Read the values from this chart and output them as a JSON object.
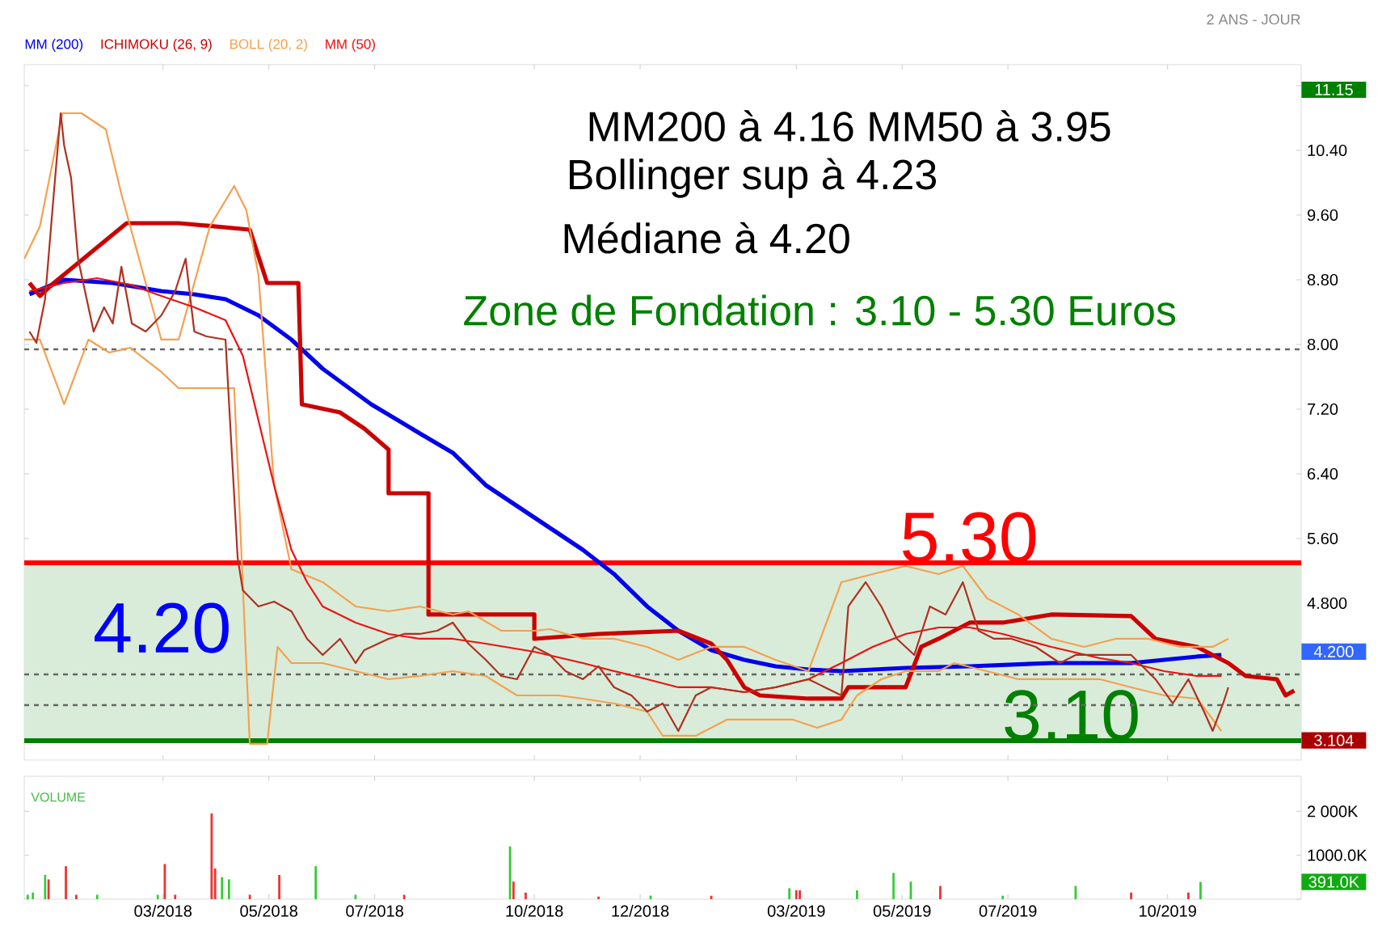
{
  "chart_data": [
    {
      "type": "line",
      "subtitle": "2 ANS - JOUR",
      "legend": "top left",
      "tick_labels": "y",
      "xlim": [
        "2017-12-11",
        "2019-12-17"
      ],
      "ylim": [
        2.86,
        11.46
      ],
      "xticks": [
        {
          "value": "2018-03-01",
          "label": null
        },
        {
          "value": "2018-05-01",
          "label": null
        },
        {
          "value": "2018-07-01",
          "label": null
        },
        {
          "value": "2018-10-01",
          "label": null
        },
        {
          "value": "2018-12-01",
          "label": null
        },
        {
          "value": "2019-03-01",
          "label": null
        },
        {
          "value": "2019-05-01",
          "label": null
        },
        {
          "value": "2019-07-01",
          "label": null
        },
        {
          "value": "2019-10-01",
          "label": null
        }
      ],
      "yticks": [
        {
          "value": 11.2,
          "label": null
        },
        {
          "value": 10.4,
          "label": "10.40"
        },
        {
          "value": 9.6,
          "label": "9.60"
        },
        {
          "value": 8.8,
          "label": "8.80"
        },
        {
          "value": 8.0,
          "label": "8.00"
        },
        {
          "value": 7.2,
          "label": "7.20"
        },
        {
          "value": 6.4,
          "label": "6.40"
        },
        {
          "value": 5.6,
          "label": "5.60"
        },
        {
          "value": 4.8,
          "label": "4.800"
        },
        {
          "value": 4.0,
          "label": null
        },
        {
          "value": 3.2,
          "label": null
        }
      ],
      "bands": [
        {
          "axis": "y",
          "from": 3.1,
          "to": 5.3,
          "color": "#d9ecd9"
        }
      ],
      "ref_lines": [
        {
          "axis": "y",
          "value": 5.3,
          "label": "5.30",
          "color": "#ff0000",
          "line_style": "solid"
        },
        {
          "axis": "y",
          "value": 3.1,
          "label": "3.10",
          "color": "#008000",
          "line_style": "solid"
        },
        {
          "axis": "y",
          "value": 7.94,
          "color": "#666666",
          "line_style": "dashed"
        },
        {
          "axis": "y",
          "value": 3.92,
          "color": "#666666",
          "line_style": "dashed"
        },
        {
          "axis": "y",
          "value": 3.54,
          "color": "#666666",
          "line_style": "dashed"
        }
      ],
      "annotations": [
        "MM200 à 4.16 MM50 à 3.95",
        "Bollinger sup à 4.23",
        "Médiane à 4.20",
        "Zone de Fondation : 3.10 - 5.30 Euros",
        "4.20",
        "11.15",
        "4.200",
        "3.104"
      ],
      "series": [
        {
          "name": "MM (200)",
          "color": "#0000ee",
          "x": [
            "2017-12-14",
            "2018-01-03",
            "2018-01-31",
            "2018-02-28",
            "2018-03-19",
            "2018-04-06",
            "2018-04-25",
            "2018-05-14",
            "2018-06-01",
            "2018-06-29",
            "2018-07-27",
            "2018-08-15",
            "2018-09-03",
            "2018-10-01",
            "2018-10-29",
            "2018-11-16",
            "2018-12-05",
            "2018-12-23",
            "2019-01-11",
            "2019-01-30",
            "2019-02-17",
            "2019-03-08",
            "2019-03-27",
            "2019-05-03",
            "2019-06-09",
            "2019-07-26",
            "2019-09-10",
            "2019-10-18",
            "2019-11-01"
          ],
          "values": [
            8.62,
            8.8,
            8.76,
            8.66,
            8.62,
            8.56,
            8.36,
            8.06,
            7.7,
            7.26,
            6.9,
            6.66,
            6.26,
            5.86,
            5.46,
            5.16,
            4.76,
            4.46,
            4.22,
            4.1,
            4.02,
            3.98,
            3.96,
            4.0,
            4.02,
            4.06,
            4.06,
            4.14,
            4.16
          ]
        },
        {
          "name": "ICHIMOKU (26, 9)",
          "color": "#cc0000",
          "x": [
            "2017-12-14",
            "2017-12-20",
            "2017-12-28",
            "2018-02-08",
            "2018-03-10",
            "2018-04-20",
            "2018-04-30",
            "2018-05-18",
            "2018-05-20",
            "2018-06-11",
            "2018-06-25",
            "2018-07-09",
            "2018-07-09",
            "2018-08-01",
            "2018-08-01",
            "2018-10-01",
            "2018-10-01",
            "2018-11-07",
            "2018-12-23",
            "2019-01-11",
            "2019-01-20",
            "2019-01-30",
            "2019-02-08",
            "2019-03-08",
            "2019-03-27",
            "2019-03-31",
            "2019-05-03",
            "2019-05-12",
            "2019-05-22",
            "2019-06-09",
            "2019-06-28",
            "2019-07-26",
            "2019-09-10",
            "2019-09-24",
            "2019-10-18",
            "2019-11-05",
            "2019-11-15",
            "2019-12-03",
            "2019-12-08",
            "2019-12-13"
          ],
          "values": [
            8.76,
            8.6,
            8.76,
            9.5,
            9.5,
            9.42,
            8.76,
            8.76,
            7.26,
            7.16,
            6.96,
            6.7,
            6.16,
            6.16,
            4.66,
            4.66,
            4.36,
            4.42,
            4.46,
            4.3,
            4.1,
            3.76,
            3.66,
            3.62,
            3.62,
            3.76,
            3.76,
            4.26,
            4.36,
            4.56,
            4.56,
            4.66,
            4.64,
            4.36,
            4.26,
            4.06,
            3.9,
            3.86,
            3.66,
            3.72
          ]
        },
        {
          "name": "BOLL (20, 2)",
          "color": "#f5a050",
          "x": [
            "2017-12-11",
            "2017-12-20",
            "2018-01-02",
            "2018-01-13",
            "2018-01-27",
            "2018-02-05",
            "2018-02-19",
            "2018-02-28",
            "2018-03-10",
            "2018-03-28",
            "2018-04-11",
            "2018-04-18",
            "2018-04-25",
            "2018-05-04",
            "2018-05-14",
            "2018-06-01",
            "2018-06-20",
            "2018-07-09",
            "2018-07-27",
            "2018-08-15",
            "2018-08-24",
            "2018-09-12",
            "2018-10-01",
            "2018-10-10",
            "2018-10-29",
            "2018-11-16",
            "2018-12-05",
            "2018-12-23",
            "2019-01-11",
            "2019-01-30",
            "2019-02-17",
            "2019-03-08",
            "2019-03-27",
            "2019-04-14",
            "2019-05-03",
            "2019-05-22",
            "2019-06-05",
            "2019-06-19",
            "2019-07-07",
            "2019-07-26",
            "2019-08-14",
            "2019-09-01",
            "2019-09-20",
            "2019-10-08",
            "2019-10-27",
            "2019-11-05"
          ],
          "values": [
            9.06,
            9.46,
            10.86,
            10.86,
            10.66,
            9.86,
            8.76,
            8.06,
            8.06,
            9.46,
            9.96,
            9.66,
            8.86,
            6.26,
            5.22,
            5.06,
            4.76,
            4.7,
            4.76,
            4.66,
            4.7,
            4.46,
            4.46,
            4.48,
            4.36,
            4.36,
            4.26,
            4.1,
            4.26,
            4.26,
            4.1,
            3.96,
            5.06,
            5.16,
            5.26,
            5.16,
            5.26,
            4.86,
            4.66,
            4.36,
            4.26,
            4.36,
            4.36,
            4.26,
            4.26,
            4.36
          ]
        },
        {
          "name": "MM (50)",
          "color": "#ee1111",
          "x": [
            "2017-12-14",
            "2018-01-03",
            "2018-01-22",
            "2018-02-10",
            "2018-02-28",
            "2018-03-19",
            "2018-04-06",
            "2018-04-16",
            "2018-04-25",
            "2018-05-04",
            "2018-05-14",
            "2018-05-23",
            "2018-06-01",
            "2018-06-20",
            "2018-07-09",
            "2018-07-27",
            "2018-08-15",
            "2018-09-03",
            "2018-10-01",
            "2018-10-29",
            "2018-11-16",
            "2018-12-05",
            "2018-12-23",
            "2019-01-11",
            "2019-01-30",
            "2019-02-17",
            "2019-03-08",
            "2019-03-27",
            "2019-04-14",
            "2019-05-03",
            "2019-05-22",
            "2019-06-09",
            "2019-06-28",
            "2019-07-26",
            "2019-08-23",
            "2019-09-10",
            "2019-09-29",
            "2019-10-18",
            "2019-11-01"
          ],
          "values": [
            8.66,
            8.76,
            8.82,
            8.74,
            8.6,
            8.46,
            8.3,
            7.86,
            7.06,
            6.26,
            5.46,
            5.06,
            4.76,
            4.56,
            4.42,
            4.36,
            4.36,
            4.3,
            4.2,
            4.06,
            3.96,
            3.86,
            3.76,
            3.76,
            3.7,
            3.76,
            3.86,
            4.06,
            4.26,
            4.42,
            4.5,
            4.5,
            4.42,
            4.26,
            4.12,
            4.06,
            3.96,
            3.9,
            3.9
          ]
        },
        {
          "color": "#f5a050",
          "x": [
            "2017-12-11",
            "2017-12-20",
            "2018-01-03",
            "2018-01-17",
            "2018-01-29",
            "2018-02-10",
            "2018-02-28",
            "2018-03-10",
            "2018-03-28",
            "2018-04-11",
            "2018-04-20",
            "2018-04-30",
            "2018-05-06",
            "2018-05-14",
            "2018-06-01",
            "2018-06-20",
            "2018-07-09",
            "2018-07-27",
            "2018-08-15",
            "2018-09-03",
            "2018-09-21",
            "2018-10-01",
            "2018-10-15",
            "2018-10-29",
            "2018-11-16",
            "2018-12-05",
            "2018-12-14",
            "2019-01-02",
            "2019-01-20",
            "2019-02-08",
            "2019-02-27",
            "2019-03-13",
            "2019-03-27",
            "2019-04-05",
            "2019-04-19",
            "2019-05-03",
            "2019-05-22",
            "2019-05-31",
            "2019-06-19",
            "2019-07-07",
            "2019-07-26",
            "2019-08-23",
            "2019-09-10",
            "2019-09-29",
            "2019-10-18",
            "2019-11-01"
          ],
          "values": [
            8.06,
            8.06,
            7.26,
            8.06,
            7.9,
            7.96,
            7.66,
            7.46,
            7.46,
            7.46,
            3.06,
            3.06,
            4.26,
            4.06,
            4.06,
            3.96,
            3.86,
            3.9,
            3.96,
            3.9,
            3.66,
            3.66,
            3.66,
            3.62,
            3.56,
            3.46,
            3.16,
            3.16,
            3.36,
            3.36,
            3.36,
            3.26,
            3.36,
            3.66,
            3.86,
            3.96,
            3.96,
            4.06,
            3.96,
            3.86,
            3.86,
            3.86,
            3.76,
            3.66,
            3.62,
            3.22
          ]
        },
        {
          "color": "#b03020",
          "x": [
            "2017-12-14",
            "2017-12-18",
            "2017-12-23",
            "2017-12-28",
            "2018-01-01",
            "2018-01-03",
            "2018-01-07",
            "2018-01-11",
            "2018-01-14",
            "2018-01-20",
            "2018-01-26",
            "2018-01-31",
            "2018-02-05",
            "2018-02-11",
            "2018-02-19",
            "2018-02-28",
            "2018-03-08",
            "2018-03-14",
            "2018-03-19",
            "2018-03-26",
            "2018-04-06",
            "2018-04-13",
            "2018-04-16",
            "2018-04-25",
            "2018-05-04",
            "2018-05-14",
            "2018-05-23",
            "2018-06-01",
            "2018-06-11",
            "2018-06-20",
            "2018-06-25",
            "2018-06-29",
            "2018-07-09",
            "2018-07-18",
            "2018-07-27",
            "2018-08-06",
            "2018-08-15",
            "2018-08-24",
            "2018-09-03",
            "2018-09-12",
            "2018-09-21",
            "2018-10-01",
            "2018-10-10",
            "2018-10-19",
            "2018-10-29",
            "2018-11-07",
            "2018-11-16",
            "2018-11-26",
            "2018-12-05",
            "2018-12-14",
            "2018-12-23",
            "2019-01-02",
            "2019-01-11",
            "2019-01-30",
            "2019-02-17",
            "2019-03-08",
            "2019-03-27",
            "2019-03-31",
            "2019-04-10",
            "2019-04-19",
            "2019-04-28",
            "2019-05-08",
            "2019-05-17",
            "2019-05-26",
            "2019-06-05",
            "2019-06-14",
            "2019-06-23",
            "2019-07-03",
            "2019-07-17",
            "2019-07-31",
            "2019-08-09",
            "2019-08-23",
            "2019-09-10",
            "2019-09-24",
            "2019-10-04",
            "2019-10-13",
            "2019-10-22",
            "2019-10-27",
            "2019-11-02",
            "2019-11-05"
          ],
          "values": [
            8.16,
            8.02,
            8.56,
            9.86,
            10.86,
            10.46,
            10.06,
            9.06,
            8.76,
            8.16,
            8.46,
            8.26,
            8.96,
            8.26,
            8.16,
            8.36,
            8.66,
            9.06,
            8.16,
            8.1,
            8.06,
            5.36,
            4.96,
            4.76,
            4.82,
            4.7,
            4.36,
            4.16,
            4.36,
            4.06,
            4.22,
            4.26,
            4.36,
            4.42,
            4.42,
            4.46,
            4.56,
            4.3,
            4.1,
            3.9,
            3.86,
            4.26,
            4.16,
            3.96,
            3.86,
            4.02,
            3.76,
            3.66,
            3.46,
            3.56,
            3.22,
            3.66,
            3.76,
            3.7,
            3.76,
            3.86,
            3.66,
            4.76,
            5.06,
            4.76,
            4.36,
            4.16,
            4.76,
            4.66,
            5.06,
            4.46,
            4.36,
            4.36,
            4.26,
            4.06,
            4.16,
            4.16,
            4.16,
            3.86,
            3.56,
            3.86,
            3.46,
            3.22,
            3.56,
            3.76
          ]
        }
      ]
    },
    {
      "type": "bar",
      "title": "VOLUME",
      "xlim": [
        "2017-12-11",
        "2019-12-17"
      ],
      "ylim": [
        0,
        2800
      ],
      "xticks": [
        {
          "value": "2018-03-01",
          "label": "03/2018"
        },
        {
          "value": "2018-05-01",
          "label": "05/2018"
        },
        {
          "value": "2018-07-01",
          "label": "07/2018"
        },
        {
          "value": "2018-10-01",
          "label": "10/2018"
        },
        {
          "value": "2018-12-01",
          "label": "12/2018"
        },
        {
          "value": "2019-03-01",
          "label": "03/2019"
        },
        {
          "value": "2019-05-01",
          "label": "05/2019"
        },
        {
          "value": "2019-07-01",
          "label": "07/2019"
        },
        {
          "value": "2019-10-01",
          "label": "10/2019"
        }
      ],
      "yticks": [
        {
          "value": 0,
          "label": null
        },
        {
          "value": 1000,
          "label": "1000.0K"
        },
        {
          "value": 2000,
          "label": "2 000K"
        }
      ],
      "annotations": [
        "391.0K"
      ],
      "x": [
        "2017-12-13",
        "2017-12-16",
        "2017-12-23",
        "2017-12-25",
        "2018-01-04",
        "2018-01-10",
        "2018-01-22",
        "2018-02-26",
        "2018-03-02",
        "2018-03-08",
        "2018-03-29",
        "2018-03-31",
        "2018-04-04",
        "2018-04-08",
        "2018-04-20",
        "2018-05-07",
        "2018-05-28",
        "2018-06-20",
        "2018-07-18",
        "2018-09-17",
        "2018-09-19",
        "2018-09-26",
        "2018-11-07",
        "2018-12-07",
        "2019-01-11",
        "2019-02-25",
        "2019-03-01",
        "2019-03-03",
        "2019-04-05",
        "2019-04-26",
        "2019-05-06",
        "2019-05-23",
        "2019-06-28",
        "2019-08-09",
        "2019-09-10",
        "2019-10-13",
        "2019-10-20"
      ],
      "values": [
        100,
        150,
        550,
        450,
        750,
        100,
        100,
        100,
        800,
        100,
        1950,
        700,
        500,
        450,
        100,
        550,
        750,
        100,
        100,
        1200,
        400,
        150,
        60,
        80,
        80,
        250,
        200,
        200,
        200,
        600,
        400,
        300,
        80,
        300,
        150,
        150,
        391
      ],
      "colors": [
        "#33cc33",
        "#33cc33",
        "#33cc33",
        "#ee3333",
        "#ee3333",
        "#ee3333",
        "#33cc33",
        "#33cc33",
        "#ee3333",
        "#ee3333",
        "#ee3333",
        "#ee3333",
        "#33cc33",
        "#33cc33",
        "#ee3333",
        "#ee3333",
        "#33cc33",
        "#33cc33",
        "#ee3333",
        "#33cc33",
        "#ee3333",
        "#ee3333",
        "#ee3333",
        "#33cc33",
        "#ee3333",
        "#33cc33",
        "#ee3333",
        "#ee3333",
        "#33cc33",
        "#33cc33",
        "#33cc33",
        "#ee3333",
        "#33cc33",
        "#33cc33",
        "#ee3333",
        "#ee3333",
        "#33cc33"
      ]
    }
  ]
}
